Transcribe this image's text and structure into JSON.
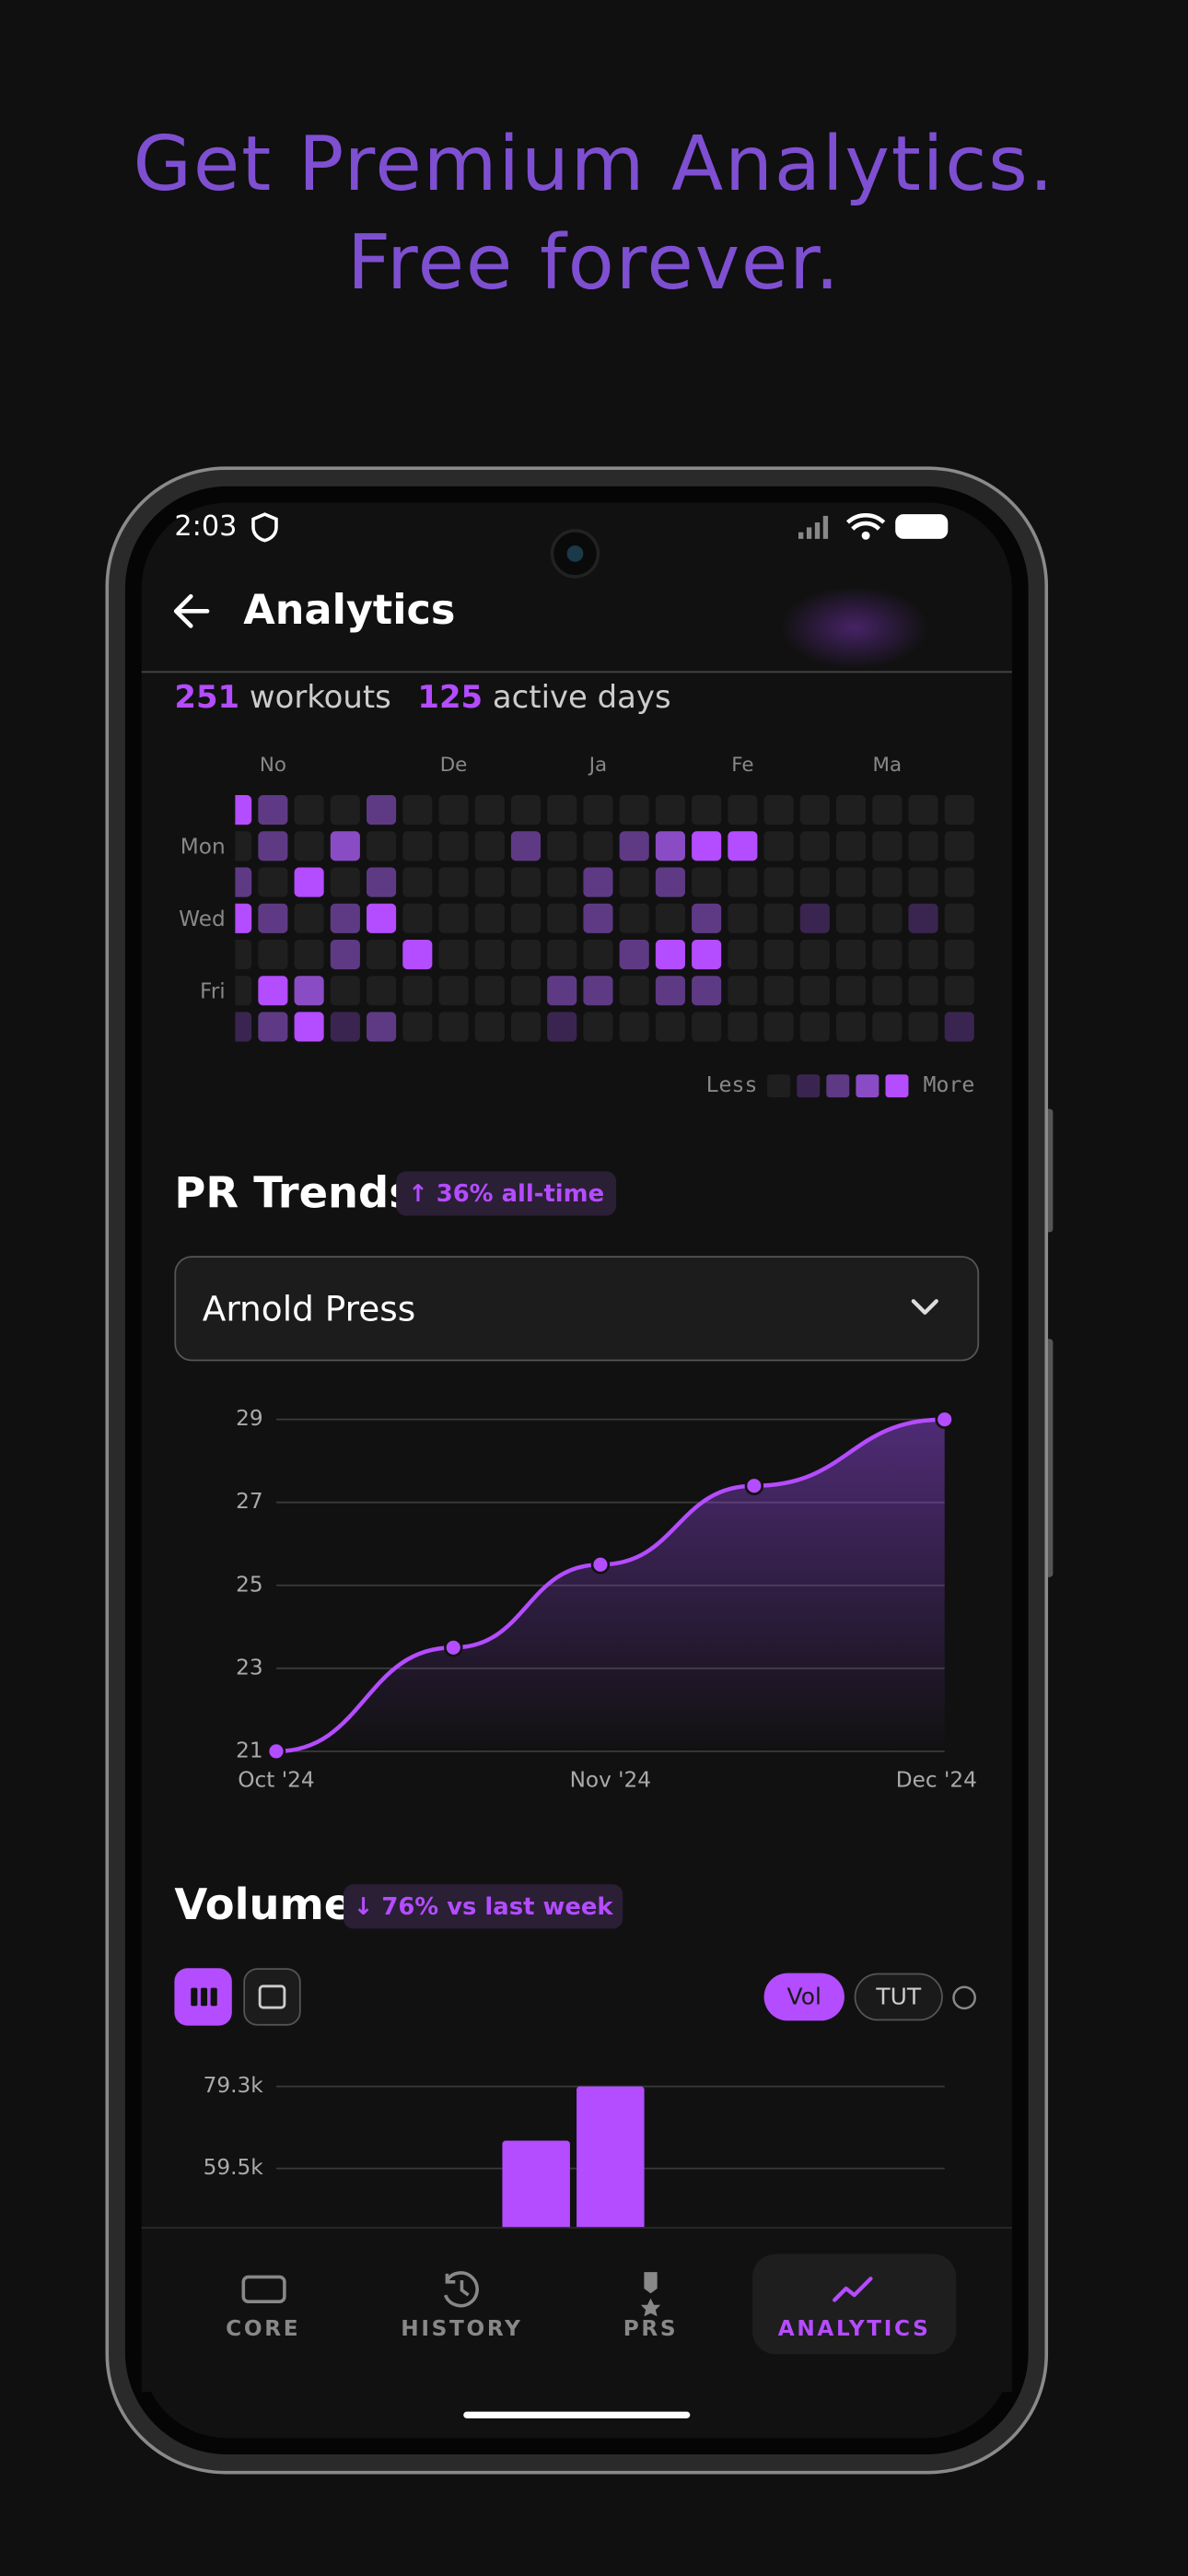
{
  "header": {
    "title_lines": [
      "Get Premium Analytics.",
      "Free forever."
    ]
  },
  "status_bar": {
    "time": "2:03"
  },
  "app_bar": {
    "title": "Analytics"
  },
  "summary": {
    "workouts": 251,
    "workouts_label": "workouts",
    "active_days": 125,
    "active_days_label": "active days"
  },
  "heatmap": {
    "months": [
      null,
      "No",
      null,
      null,
      null,
      null,
      "De",
      null,
      null,
      null,
      "Ja",
      null,
      null,
      null,
      "Fe",
      null,
      null,
      null,
      "Ma",
      null,
      null
    ],
    "days": [
      null,
      "Mon",
      null,
      "Wed",
      null,
      "Fri",
      null
    ],
    "levels": [
      [
        4,
        2,
        0,
        0,
        2,
        0,
        0,
        0,
        0,
        0,
        0,
        0,
        0,
        0,
        0,
        0,
        0,
        0,
        0,
        0,
        0
      ],
      [
        0,
        2,
        0,
        3,
        0,
        0,
        0,
        0,
        2,
        0,
        0,
        2,
        3,
        4,
        4,
        0,
        0,
        0,
        0,
        0,
        0
      ],
      [
        2,
        0,
        4,
        0,
        2,
        0,
        0,
        0,
        0,
        0,
        2,
        0,
        2,
        0,
        0,
        0,
        0,
        0,
        0,
        0,
        0
      ],
      [
        4,
        2,
        0,
        2,
        4,
        0,
        0,
        0,
        0,
        0,
        2,
        0,
        0,
        2,
        0,
        0,
        1,
        0,
        0,
        1,
        0
      ],
      [
        0,
        0,
        0,
        2,
        0,
        4,
        0,
        0,
        0,
        0,
        0,
        2,
        4,
        4,
        0,
        0,
        0,
        0,
        0,
        0,
        0
      ],
      [
        0,
        4,
        3,
        0,
        0,
        0,
        0,
        0,
        0,
        2,
        2,
        0,
        2,
        2,
        0,
        0,
        0,
        0,
        0,
        0,
        0
      ],
      [
        1,
        2,
        4,
        1,
        2,
        0,
        0,
        0,
        0,
        1,
        0,
        0,
        0,
        0,
        0,
        0,
        0,
        0,
        0,
        0,
        1
      ]
    ],
    "colors": [
      "#1f1f1f",
      "#3a2550",
      "#5e3a85",
      "#8a4cc4",
      "#b44cff"
    ],
    "legend_less": "Less",
    "legend_more": "More"
  },
  "pr_trends": {
    "title": "PR Trends",
    "badge": "↑ 36% all-time",
    "exercise": "Arnold Press"
  },
  "volume": {
    "title": "Volume",
    "badge": "↓ 76% vs last week",
    "toggles": [
      "Vol",
      "TUT"
    ]
  },
  "chart_data": [
    {
      "type": "line",
      "x": [
        0,
        0.53,
        0.97,
        1.43,
        2
      ],
      "series": [
        {
          "color": "#b44cff",
          "values": [
            21,
            23.5,
            25.5,
            27.4,
            29
          ]
        }
      ],
      "xlim": [
        0,
        2
      ],
      "xticks": [
        {
          "value": 0,
          "label": "Oct '24"
        },
        {
          "value": 1,
          "label": "Nov '24"
        },
        {
          "value": 2,
          "label": "Dec '24"
        }
      ],
      "ylim": [
        21,
        29
      ],
      "yticks": [
        21,
        23,
        25,
        27,
        29
      ],
      "grid": true
    },
    {
      "type": "bar",
      "categories": [
        null,
        null,
        null,
        null,
        null,
        null,
        null,
        null,
        null
      ],
      "values": [
        null,
        null,
        null,
        66200,
        79300,
        null,
        null,
        null,
        null
      ],
      "color": "#b44cff",
      "ylim": [
        0,
        79300
      ],
      "yticks": [
        {
          "value": 59500,
          "label": "59.5k"
        },
        {
          "value": 79300,
          "label": "79.3k"
        }
      ],
      "grid": true
    }
  ],
  "nav": {
    "items": [
      "CORE",
      "HISTORY",
      "PRS",
      "ANALYTICS"
    ]
  }
}
